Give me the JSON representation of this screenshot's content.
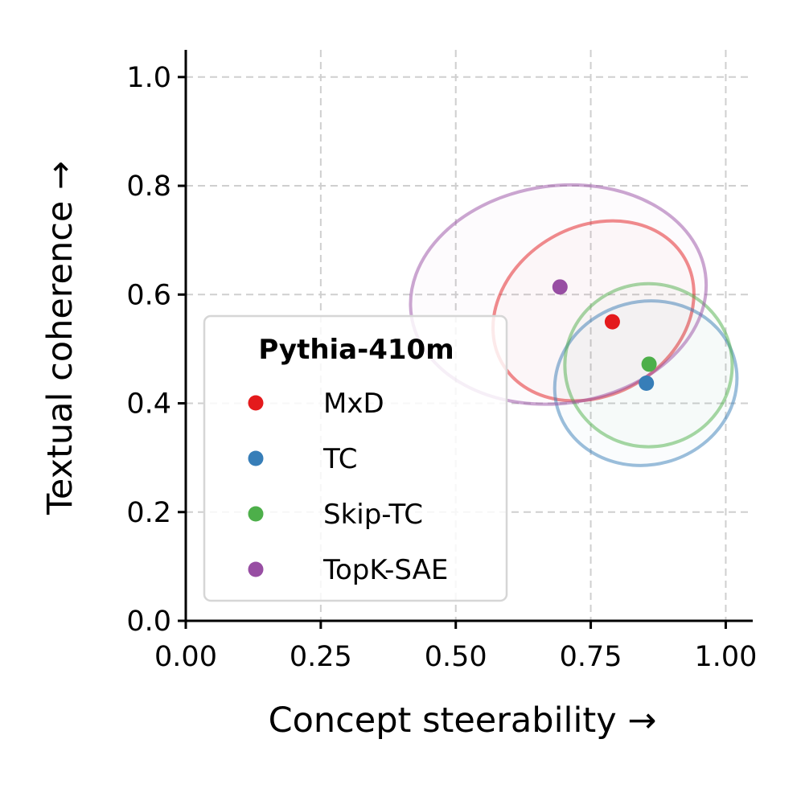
{
  "chart_data": {
    "type": "scatter",
    "xlabel": "Concept steerability →",
    "ylabel": "Textual coherence →",
    "xlim": [
      0.0,
      1.05
    ],
    "ylim": [
      0.0,
      1.05
    ],
    "xticks": [
      0.0,
      0.25,
      0.5,
      0.75,
      1.0
    ],
    "xtick_labels": [
      "0.00",
      "0.25",
      "0.50",
      "0.75",
      "1.00"
    ],
    "yticks": [
      0.0,
      0.2,
      0.4,
      0.6,
      0.8,
      1.0
    ],
    "ytick_labels": [
      "0.0",
      "0.2",
      "0.4",
      "0.6",
      "0.8",
      "1.0"
    ],
    "grid": true,
    "legend": {
      "title": "Pythia-410m",
      "placement": "lower-left"
    },
    "series": [
      {
        "name": "MxD",
        "color": "#e41a1c",
        "point": {
          "x": 0.79,
          "y": 0.55
        },
        "ellipse": {
          "cx": 0.755,
          "cy": 0.57,
          "rx": 0.195,
          "ry": 0.155,
          "angle_deg": -30
        }
      },
      {
        "name": "TC",
        "color": "#377eb8",
        "point": {
          "x": 0.853,
          "y": 0.437
        },
        "ellipse": {
          "cx": 0.852,
          "cy": 0.437,
          "rx": 0.17,
          "ry": 0.15,
          "angle_deg": -15
        }
      },
      {
        "name": "Skip-TC",
        "color": "#4daf4a",
        "point": {
          "x": 0.858,
          "y": 0.472
        },
        "ellipse": {
          "cx": 0.857,
          "cy": 0.47,
          "rx": 0.155,
          "ry": 0.15,
          "angle_deg": 0
        }
      },
      {
        "name": "TopK-SAE",
        "color": "#984ea3",
        "point": {
          "x": 0.693,
          "y": 0.614
        },
        "ellipse": {
          "cx": 0.69,
          "cy": 0.6,
          "rx": 0.275,
          "ry": 0.2,
          "angle_deg": -8
        }
      }
    ]
  }
}
